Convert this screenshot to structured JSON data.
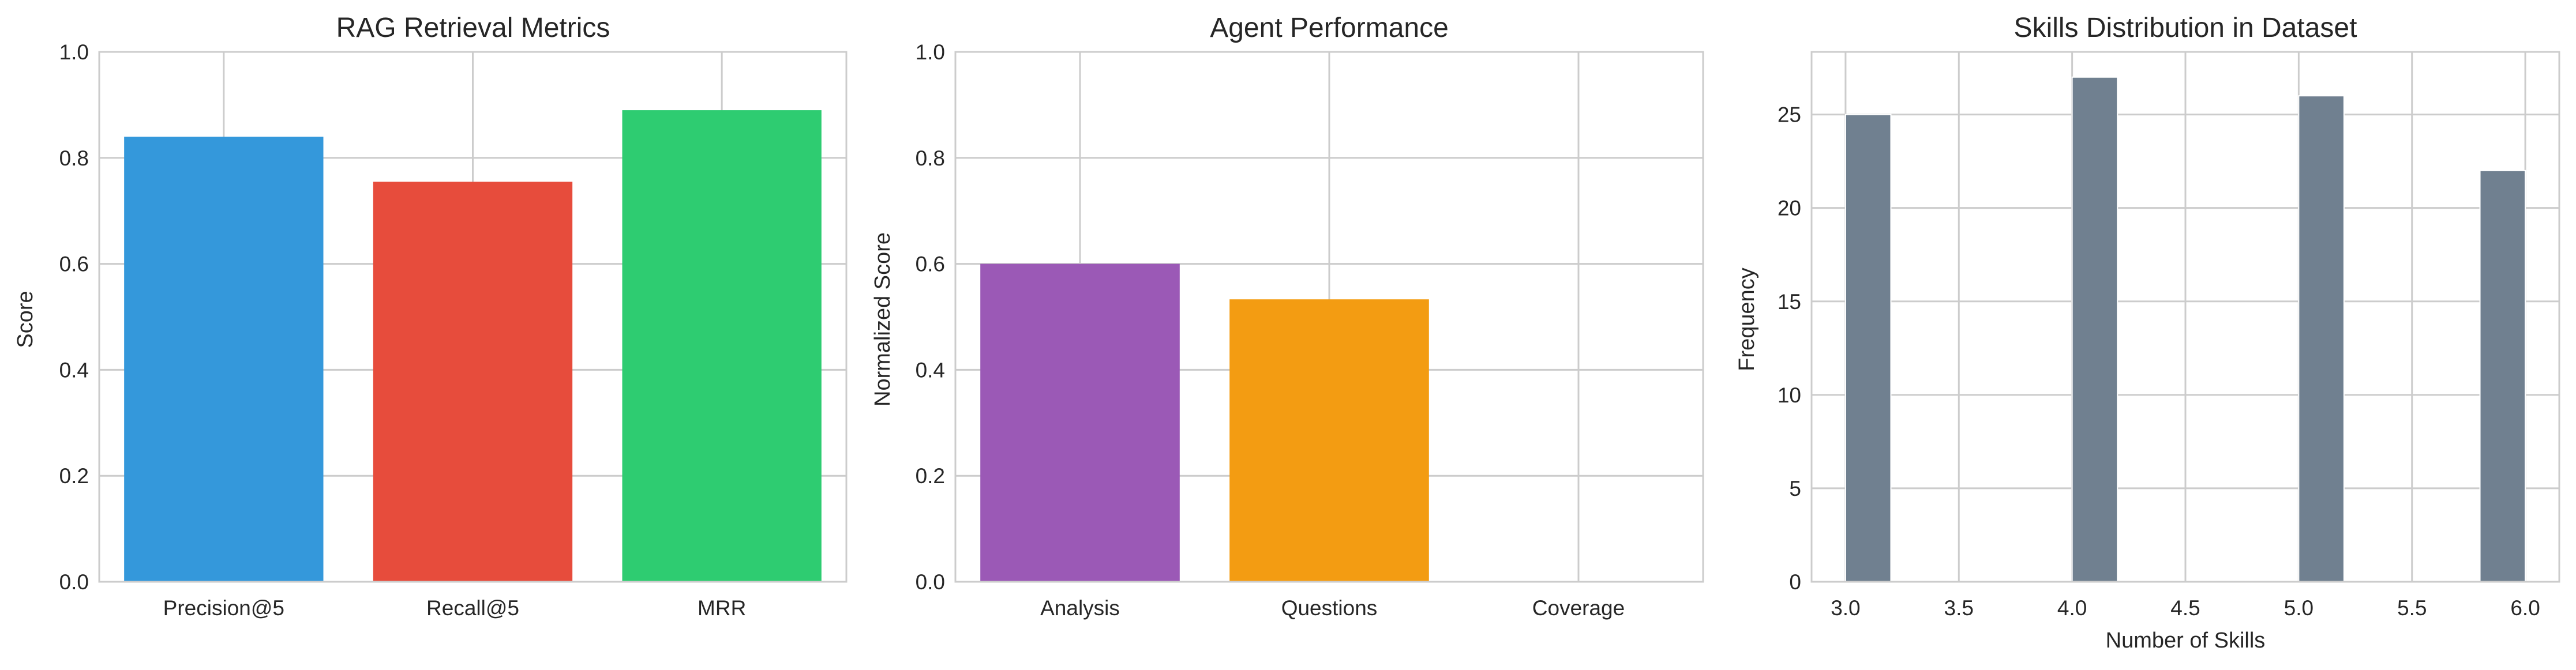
{
  "chart_data": [
    {
      "type": "bar",
      "title": "RAG Retrieval Metrics",
      "xlabel": "",
      "ylabel": "Score",
      "categories": [
        "Precision@5",
        "Recall@5",
        "MRR"
      ],
      "values": [
        0.84,
        0.755,
        0.89
      ],
      "colors": [
        "#3498db",
        "#e74c3c",
        "#2ecc71"
      ],
      "ylim": [
        0,
        1.0
      ],
      "yticks": [
        0.0,
        0.2,
        0.4,
        0.6,
        0.8,
        1.0
      ],
      "ytick_labels": [
        "0.0",
        "0.2",
        "0.4",
        "0.6",
        "0.8",
        "1.0"
      ],
      "grid": true,
      "legend": "none"
    },
    {
      "type": "bar",
      "title": "Agent Performance",
      "xlabel": "",
      "ylabel": "Normalized Score",
      "categories": [
        "Analysis",
        "Questions",
        "Coverage"
      ],
      "values": [
        0.6,
        0.533,
        0.0
      ],
      "colors": [
        "#9b59b6",
        "#f39c12",
        "#1abc9c"
      ],
      "ylim": [
        0,
        1.0
      ],
      "yticks": [
        0.0,
        0.2,
        0.4,
        0.6,
        0.8,
        1.0
      ],
      "ytick_labels": [
        "0.0",
        "0.2",
        "0.4",
        "0.6",
        "0.8",
        "1.0"
      ],
      "grid": true,
      "legend": "none"
    },
    {
      "type": "bar",
      "histogram": true,
      "title": "Skills Distribution in Dataset",
      "xlabel": "Number of Skills",
      "ylabel": "Frequency",
      "bins": [
        {
          "start": 3.0,
          "end": 3.2,
          "count": 25
        },
        {
          "start": 4.0,
          "end": 4.2,
          "count": 27
        },
        {
          "start": 5.0,
          "end": 5.2,
          "count": 26
        },
        {
          "start": 5.8,
          "end": 6.0,
          "count": 22
        }
      ],
      "color": "#708090",
      "xlim": [
        2.85,
        6.15
      ],
      "ylim": [
        0,
        28.35
      ],
      "xticks": [
        3.0,
        3.5,
        4.0,
        4.5,
        5.0,
        5.5,
        6.0
      ],
      "xtick_labels": [
        "3.0",
        "3.5",
        "4.0",
        "4.5",
        "5.0",
        "5.5",
        "6.0"
      ],
      "yticks": [
        0,
        5,
        10,
        15,
        20,
        25
      ],
      "ytick_labels": [
        "0",
        "5",
        "10",
        "15",
        "20",
        "25"
      ],
      "grid": true,
      "legend": "none"
    }
  ]
}
